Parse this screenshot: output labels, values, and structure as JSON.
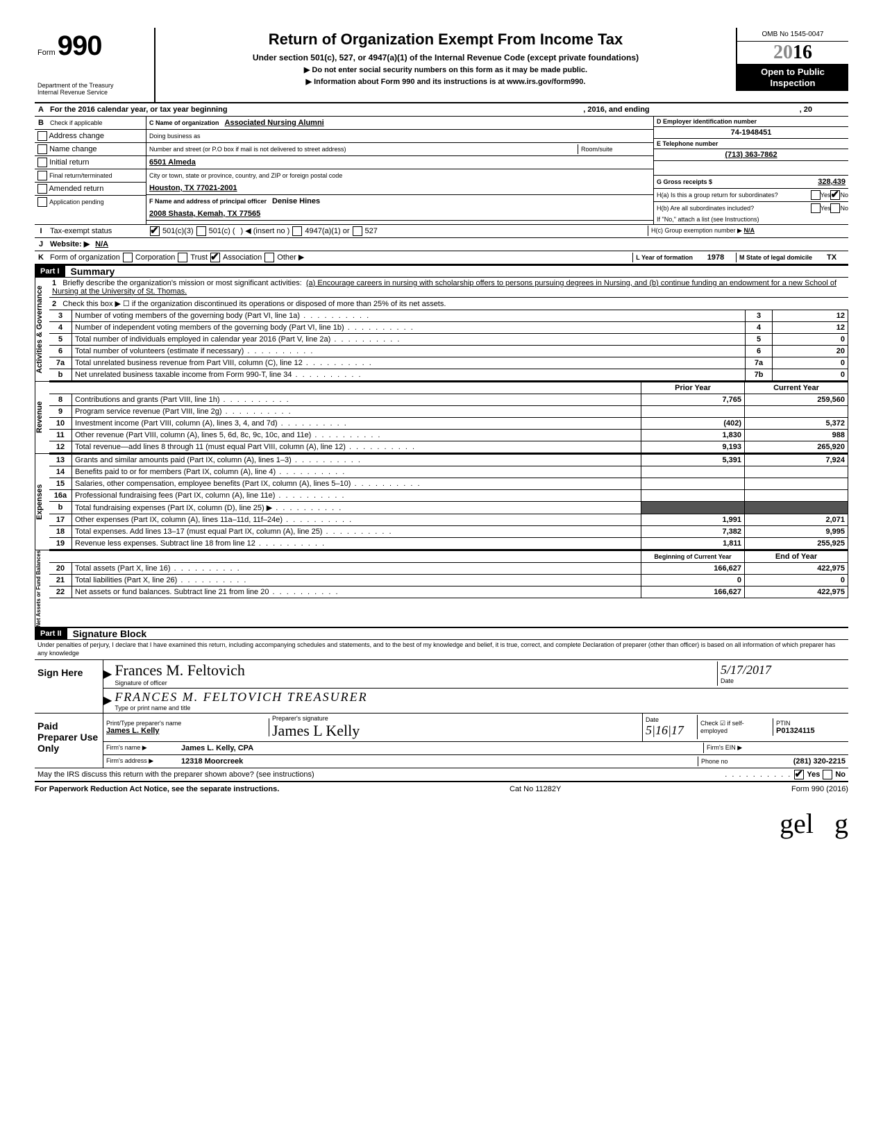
{
  "header": {
    "form_label": "Form",
    "form_number": "990",
    "dept1": "Department of the Treasury",
    "dept2": "Internal Revenue Service",
    "title": "Return of Organization Exempt From Income Tax",
    "subtitle": "Under section 501(c), 527, or 4947(a)(1) of the Internal Revenue Code (except private foundations)",
    "note1": "▶ Do not enter social security numbers on this form as it may be made public.",
    "note2": "▶ Information about Form 990 and its instructions is at www.irs.gov/form990.",
    "omb": "OMB No 1545-0047",
    "year_prefix": "20",
    "year_suffix": "16",
    "open1": "Open to Public",
    "open2": "Inspection"
  },
  "lineA": {
    "label": "A",
    "text1": "For the 2016 calendar year, or tax year beginning",
    "text2": ", 2016, and ending",
    "text3": ", 20"
  },
  "lineB": {
    "label": "B",
    "text": "Check if applicable",
    "items": [
      "Address change",
      "Name change",
      "Initial return",
      "Final return/terminated",
      "Amended return",
      "Application pending"
    ]
  },
  "lineC": {
    "c_label": "C Name of organization",
    "org_name": "Associated Nursing Alumni",
    "dba_label": "Doing business as",
    "street_label": "Number and street (or P.O box if mail is not delivered to street address)",
    "room_label": "Room/suite",
    "street": "6501 Almeda",
    "city_label": "City or town, state or province, country, and ZIP or foreign postal code",
    "city": "Houston, TX  77021-2001",
    "f_label": "F Name and address of principal officer",
    "officer_name": "Denise Hines",
    "officer_addr": "2008 Shasta, Kemah, TX  77565"
  },
  "lineD": {
    "label": "D Employer identification number",
    "value": "74-1948451"
  },
  "lineE": {
    "label": "E Telephone number",
    "value": "(713) 363-7862"
  },
  "lineG": {
    "label": "G Gross receipts $",
    "value": "328,439"
  },
  "lineH": {
    "ha": "H(a) Is this a group return for subordinates?",
    "hb": "H(b) Are all subordinates included?",
    "hb_note": "If \"No,\" attach a list (see Instructions)",
    "hc": "H(c) Group exemption number ▶",
    "hc_val": "N/A",
    "yes": "Yes",
    "no": "No"
  },
  "lineI": {
    "label": "I",
    "text": "Tax-exempt status",
    "opt1": "501(c)(3)",
    "opt2": "501(c) (",
    "opt2b": ")  ◀ (insert no )",
    "opt3": "4947(a)(1) or",
    "opt4": "527"
  },
  "lineJ": {
    "label": "J",
    "text": "Website: ▶",
    "value": "N/A"
  },
  "lineK": {
    "label": "K",
    "text": "Form of organization",
    "opts": [
      "Corporation",
      "Trust",
      "Association",
      "Other ▶"
    ],
    "yof_label": "L Year of formation",
    "yof": "1978",
    "dom_label": "M State of legal domicile",
    "dom": "TX"
  },
  "part1": {
    "hdr": "Part I",
    "title": "Summary",
    "sec_ag": "Activities & Governance",
    "sec_rev": "Revenue",
    "sec_exp": "Expenses",
    "sec_na": "Net Assets or Fund Balances",
    "l1_label": "1",
    "l1_text": "Briefly describe the organization's mission or most significant activities:",
    "l1_val": "(a) Encourage careers in nursing with scholarship offers to persons pursuing degrees in Nursing, and (b) continue funding an endowment for a new School of Nursing at the University of St. Thomas.",
    "l2": "Check this box ▶ ☐ if the organization discontinued its operations or disposed of more than 25% of its net assets.",
    "rows_ag": [
      {
        "n": "3",
        "t": "Number of voting members of the governing body (Part VI, line 1a)",
        "box": "3",
        "v": "12"
      },
      {
        "n": "4",
        "t": "Number of independent voting members of the governing body (Part VI, line 1b)",
        "box": "4",
        "v": "12"
      },
      {
        "n": "5",
        "t": "Total number of individuals employed in calendar year 2016 (Part V, line 2a)",
        "box": "5",
        "v": "0"
      },
      {
        "n": "6",
        "t": "Total number of volunteers (estimate if necessary)",
        "box": "6",
        "v": "20"
      },
      {
        "n": "7a",
        "t": "Total unrelated business revenue from Part VIII, column (C), line 12",
        "box": "7a",
        "v": "0"
      },
      {
        "n": "b",
        "t": "Net unrelated business taxable income from Form 990-T, line 34",
        "box": "7b",
        "v": "0"
      }
    ],
    "col_prior": "Prior Year",
    "col_curr": "Current Year",
    "rows_rev": [
      {
        "n": "8",
        "t": "Contributions and grants (Part VIII, line 1h)",
        "p": "7,765",
        "c": "259,560"
      },
      {
        "n": "9",
        "t": "Program service revenue (Part VIII, line 2g)",
        "p": "",
        "c": ""
      },
      {
        "n": "10",
        "t": "Investment income (Part VIII, column (A), lines 3, 4, and 7d)",
        "p": "(402)",
        "c": "5,372"
      },
      {
        "n": "11",
        "t": "Other revenue (Part VIII, column (A), lines 5, 6d, 8c, 9c, 10c, and 11e)",
        "p": "1,830",
        "c": "988"
      },
      {
        "n": "12",
        "t": "Total revenue—add lines 8 through 11 (must equal Part VIII, column (A), line 12)",
        "p": "9,193",
        "c": "265,920"
      }
    ],
    "rows_exp": [
      {
        "n": "13",
        "t": "Grants and similar amounts paid (Part IX, column (A), lines 1–3)",
        "p": "5,391",
        "c": "7,924"
      },
      {
        "n": "14",
        "t": "Benefits paid to or for members (Part IX, column (A), line 4)",
        "p": "",
        "c": ""
      },
      {
        "n": "15",
        "t": "Salaries, other compensation, employee benefits (Part IX, column (A), lines 5–10)",
        "p": "",
        "c": ""
      },
      {
        "n": "16a",
        "t": "Professional fundraising fees (Part IX, column (A),  line 11e)",
        "p": "",
        "c": ""
      },
      {
        "n": "b",
        "t": "Total fundraising expenses (Part IX, column (D), line 25) ▶",
        "p": "shade",
        "c": "shade"
      },
      {
        "n": "17",
        "t": "Other expenses (Part IX, column (A), lines 11a–11d, 11f–24e)",
        "p": "1,991",
        "c": "2,071"
      },
      {
        "n": "18",
        "t": "Total expenses. Add lines 13–17 (must equal Part IX, column (A), line 25)",
        "p": "7,382",
        "c": "9,995"
      },
      {
        "n": "19",
        "t": "Revenue less expenses. Subtract line 18 from line 12",
        "p": "1,811",
        "c": "255,925"
      }
    ],
    "col_boy": "Beginning of Current Year",
    "col_eoy": "End of Year",
    "rows_na": [
      {
        "n": "20",
        "t": "Total assets (Part X, line 16)",
        "p": "166,627",
        "c": "422,975"
      },
      {
        "n": "21",
        "t": "Total liabilities (Part X, line 26)",
        "p": "0",
        "c": "0"
      },
      {
        "n": "22",
        "t": "Net assets or fund balances. Subtract line 21 from line 20",
        "p": "166,627",
        "c": "422,975"
      }
    ]
  },
  "part2": {
    "hdr": "Part II",
    "title": "Signature Block",
    "perjury": "Under penalties of perjury, I declare that I have examined this return, including accompanying schedules and statements, and to the best of my knowledge  and belief, it is true, correct, and complete  Declaration of preparer (other than officer) is based on all information of which preparer has any knowledge",
    "sign_here": "Sign Here",
    "sig_officer": "Frances M. Feltovich",
    "sig_officer_lbl": "Signature of officer",
    "date": "5/17/2017",
    "date_lbl": "Date",
    "typed_name": "FRANCES  M.  FELTOVICH    TREASURER",
    "typed_lbl": "Type or print name and title",
    "paid": "Paid Preparer Use Only",
    "prep_name_lbl": "Print/Type preparer's name",
    "prep_name": "James L. Kelly",
    "prep_sig_lbl": "Preparer's signature",
    "prep_sig": "James L Kelly",
    "prep_date_lbl": "Date",
    "prep_date": "5|16|17",
    "check_self": "Check ☑ if self-employed",
    "ptin_lbl": "PTIN",
    "ptin": "P01324115",
    "firm_name_lbl": "Firm's name   ▶",
    "firm_name": "James L. Kelly, CPA",
    "firm_ein_lbl": "Firm's EIN ▶",
    "firm_addr_lbl": "Firm's address ▶",
    "firm_addr": "12318 Moorcreek",
    "phone_lbl": "Phone no",
    "phone": "(281) 320-2215",
    "discuss": "May the IRS discuss this return with the preparer shown above? (see instructions)",
    "yes": "Yes",
    "no": "No"
  },
  "footer": {
    "left": "For Paperwork Reduction Act Notice, see the separate instructions.",
    "mid": "Cat No 11282Y",
    "right": "Form 990 (2016)"
  }
}
